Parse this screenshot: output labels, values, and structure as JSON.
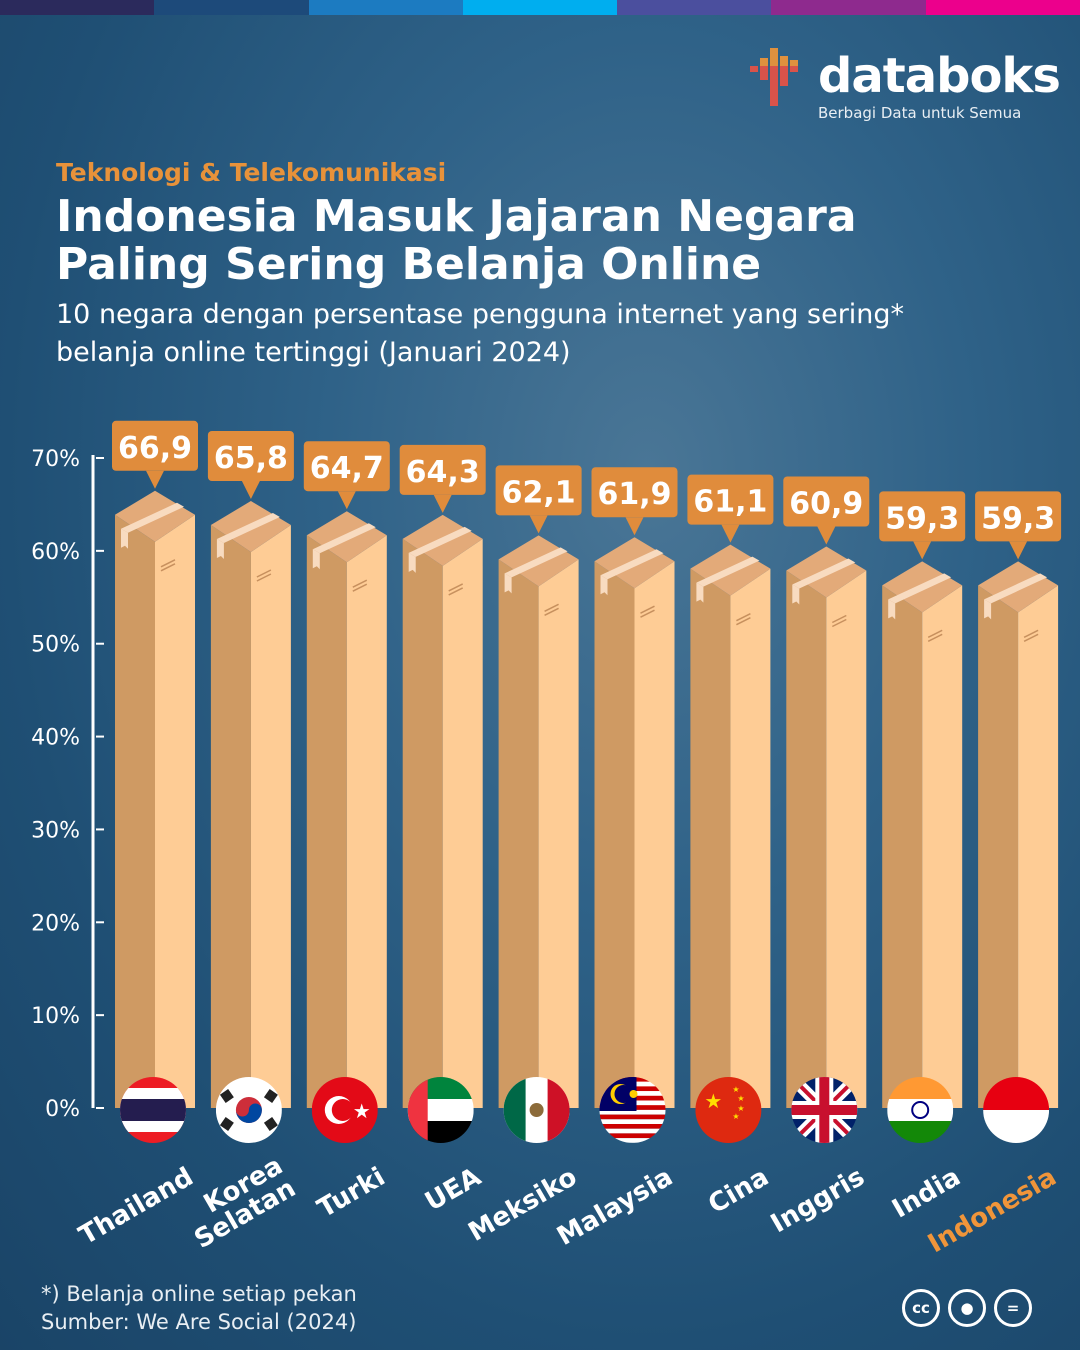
{
  "brand": {
    "name": "databoks",
    "tagline": "Berbagi Data untuk Semua"
  },
  "top_bar_colors": [
    "#2b2a5c",
    "#1d4a7a",
    "#1c7bc1",
    "#00aeef",
    "#4b4f9e",
    "#8e2a8e",
    "#ec008c"
  ],
  "header": {
    "category": "Teknologi & Telekomunikasi",
    "title": "Indonesia Masuk Jajaran Negara Paling Sering Belanja Online",
    "subtitle": "10 negara dengan persentase pengguna internet yang sering* belanja online tertinggi (Januari 2024)"
  },
  "chart_data": {
    "type": "bar",
    "title": "Indonesia Masuk Jajaran Negara Paling Sering Belanja Online",
    "categories": [
      "Thailand",
      "Korea Selatan",
      "Turki",
      "UEA",
      "Meksiko",
      "Malaysia",
      "Cina",
      "Inggris",
      "India",
      "Indonesia"
    ],
    "values": [
      66.9,
      65.8,
      64.7,
      64.3,
      62.1,
      61.9,
      61.1,
      60.9,
      59.3,
      59.3
    ],
    "value_labels": [
      "66,9",
      "65,8",
      "64,7",
      "64,3",
      "62,1",
      "61,9",
      "61,1",
      "60,9",
      "59,3",
      "59,3"
    ],
    "highlight": "Indonesia",
    "ylim": [
      0,
      70
    ],
    "yticks": [
      "0%",
      "10%",
      "20%",
      "30%",
      "40%",
      "50%",
      "60%",
      "70%"
    ],
    "xlabel": "",
    "ylabel": "",
    "colors": {
      "box_left": "#cf9a63",
      "box_right": "#fecc95",
      "box_top": "#e3aa79",
      "label_bg": "#e08c3c",
      "highlight_text": "#f0953a"
    }
  },
  "footer": {
    "note": "*) Belanja online setiap pekan",
    "source": "Sumber: We Are Social (2024)",
    "license_icons": [
      "cc-icon",
      "attribution-icon",
      "no-derivatives-icon"
    ]
  }
}
